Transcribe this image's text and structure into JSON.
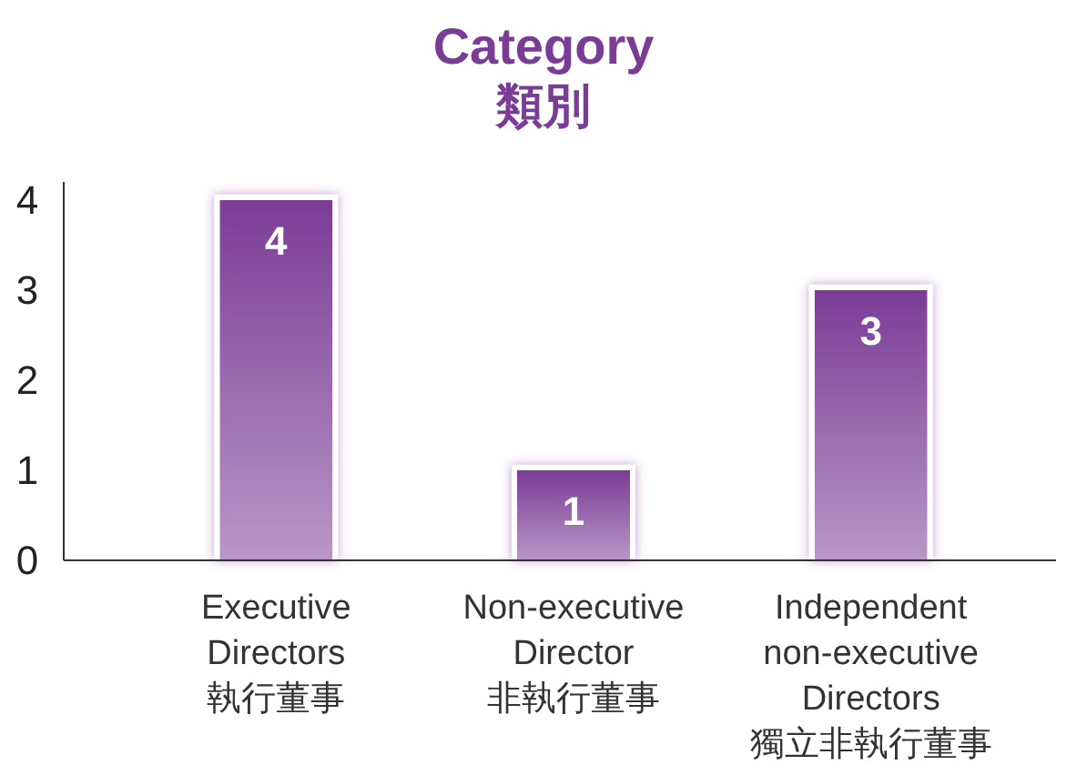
{
  "chart_data": {
    "type": "bar",
    "title": "Category",
    "subtitle": "類別",
    "categories": [
      "Executive\nDirectors\n執行董事",
      "Non-executive\nDirector\n非執行董事",
      "Independent\nnon-executive\nDirectors\n獨立非執行董事"
    ],
    "values": [
      4,
      1,
      3
    ],
    "color": "#7b3c96",
    "ylim": [
      0,
      4.2
    ],
    "yticks": [
      0,
      1,
      2,
      3,
      4
    ],
    "grid": false,
    "data_labels": true
  }
}
